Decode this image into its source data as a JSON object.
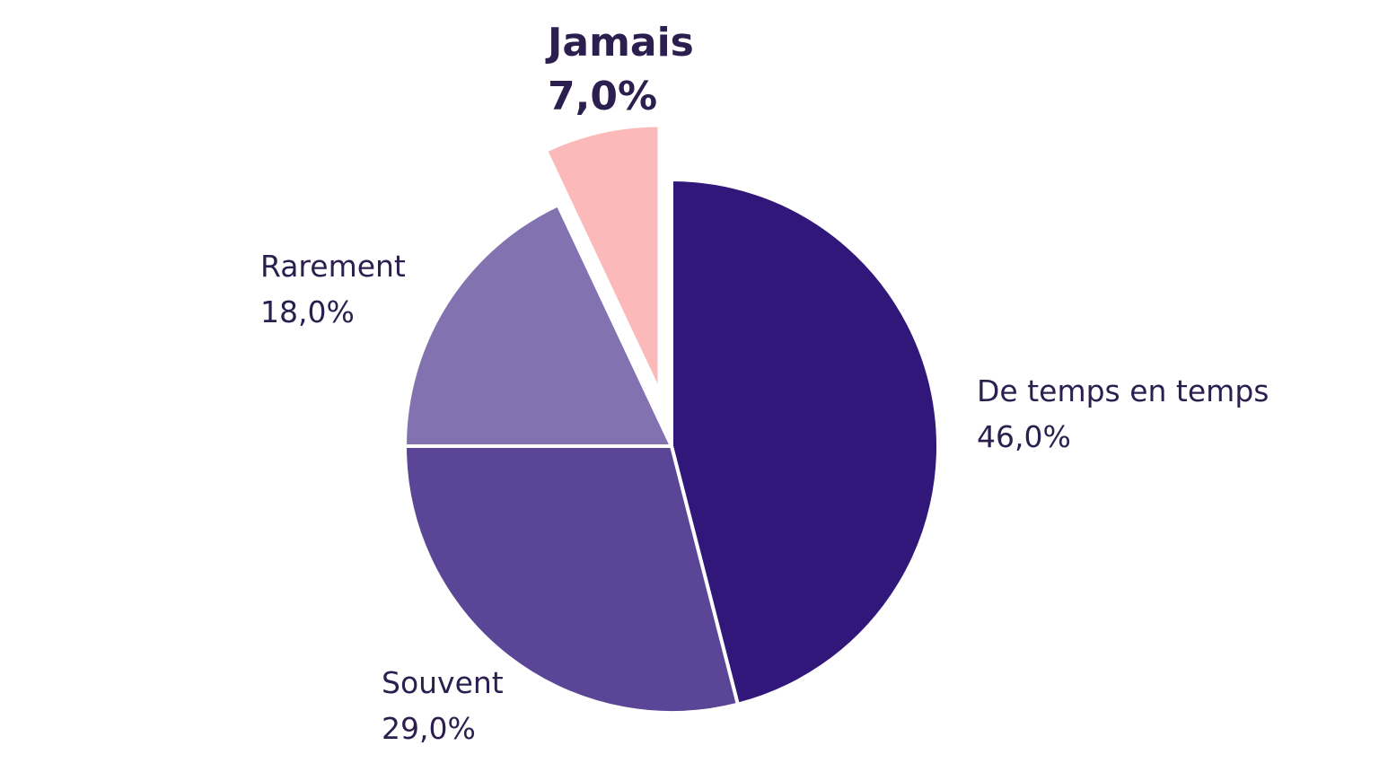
{
  "chart_data": {
    "type": "pie",
    "title": "",
    "start_angle_deg": 0,
    "direction": "clockwise",
    "slices": [
      {
        "name": "De temps en temps",
        "value": 46.0,
        "label": "46,0%",
        "color": "#31177a",
        "exploded": false,
        "highlight": false
      },
      {
        "name": "Souvent",
        "value": 29.0,
        "label": "29,0%",
        "color": "#5b4596",
        "exploded": false,
        "highlight": false
      },
      {
        "name": "Rarement",
        "value": 18.0,
        "label": "18,0%",
        "color": "#8273b0",
        "exploded": false,
        "highlight": false
      },
      {
        "name": "Jamais",
        "value": 7.0,
        "label": "7,0%",
        "color": "#fbb9b9",
        "exploded": true,
        "highlight": true
      }
    ]
  }
}
